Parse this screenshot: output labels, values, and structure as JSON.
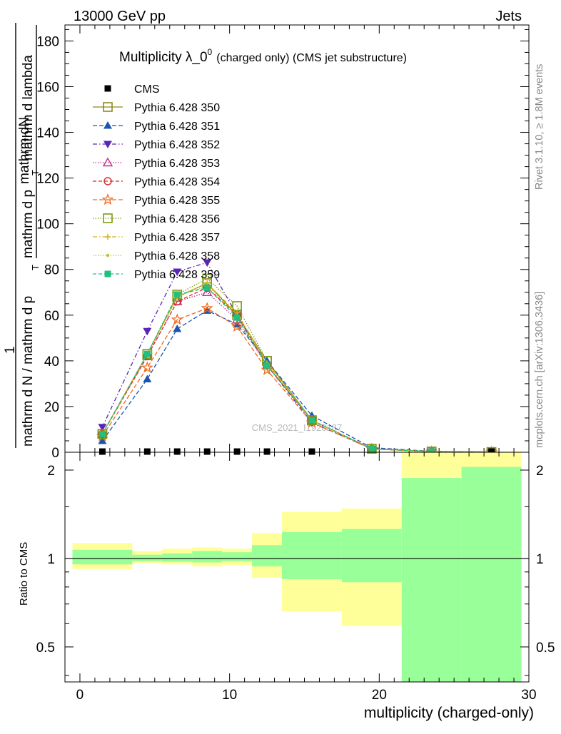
{
  "header": {
    "left": "13000 GeV pp",
    "right": "Jets"
  },
  "side_text": {
    "rivet": "Rivet 3.1.10, ≥ 1.8M events",
    "mcplots": "mcplots.cern.ch [arXiv:1306.3436]"
  },
  "watermark": "CMS_2021_I1920187",
  "chart_data": [
    {
      "type": "line",
      "title_main": "Multiplicity λ_0",
      "title_sup": "0",
      "title_suffix": "(charged only) (CMS jet substructure)",
      "ylabel_numerator": "mathrm dN",
      "ylabel_den_bottom": "mathrm d p",
      "ylabel_den_sub": "T",
      "ylabel_den_top": "mathrm d lambda",
      "ylabel_one": "1",
      "ylabel_lower_main": "mathrm d N / mathrm d p",
      "ylabel_lower_sub": "T",
      "xlim": [
        -1,
        30
      ],
      "ylim": [
        0,
        187
      ],
      "yticks": [
        0,
        20,
        40,
        60,
        80,
        100,
        120,
        140,
        160,
        180
      ],
      "x": [
        1.5,
        4.5,
        6.5,
        8.5,
        10.5,
        12.5,
        15.5,
        19.5,
        23.5,
        27.5
      ],
      "reference": {
        "name": "CMS",
        "color": "#000000",
        "values": [
          0.3,
          0.3,
          0.3,
          0.3,
          0.3,
          0.3,
          0.3,
          0,
          0,
          0.3
        ]
      },
      "series": [
        {
          "name": "Pythia 6.428 350",
          "color": "#8b8b1a",
          "dash": "",
          "marker": "square-open",
          "values": [
            8,
            43,
            68,
            74,
            60,
            40,
            14,
            1.5,
            0.3,
            0.1
          ]
        },
        {
          "name": "Pythia 6.428 351",
          "color": "#1a56b0",
          "dash": "6,3",
          "marker": "triangle-up",
          "values": [
            5,
            32,
            54,
            62,
            56,
            40,
            16,
            2,
            0.4,
            0.1
          ]
        },
        {
          "name": "Pythia 6.428 352",
          "color": "#5b24b8",
          "dash": "6,3,1.5,3",
          "marker": "triangle-down",
          "values": [
            11,
            53,
            79,
            83,
            60,
            38,
            13,
            1.5,
            0.3,
            0.1
          ]
        },
        {
          "name": "Pythia 6.428 353",
          "color": "#c03089",
          "dash": "1.5,2",
          "marker": "triangle-open",
          "values": [
            8,
            42,
            66,
            70,
            58,
            38,
            14,
            1.6,
            0.3,
            0.1
          ]
        },
        {
          "name": "Pythia 6.428 354",
          "color": "#d8262b",
          "dash": "5,3",
          "marker": "circle-open",
          "values": [
            8,
            42,
            66,
            72,
            60,
            38,
            14,
            1.5,
            0.3,
            0.1
          ]
        },
        {
          "name": "Pythia 6.428 355",
          "color": "#f06a1c",
          "dash": "6,3",
          "marker": "star-open",
          "values": [
            7,
            37,
            58,
            63,
            55,
            36,
            13,
            1.4,
            0.3,
            0.1
          ]
        },
        {
          "name": "Pythia 6.428 356",
          "color": "#7c9a12",
          "dash": "1.5,2",
          "marker": "square-open",
          "values": [
            8,
            43,
            69,
            76,
            64,
            40,
            14,
            1.5,
            0.3,
            0.1
          ]
        },
        {
          "name": "Pythia 6.428 357",
          "color": "#d8b020",
          "dash": "6,3,1.5,3",
          "marker": "cross",
          "values": [
            8,
            43,
            68,
            74,
            61,
            39,
            14,
            1.5,
            0.3,
            0.1
          ]
        },
        {
          "name": "Pythia 6.428 358",
          "color": "#b4c818",
          "dash": "1.5,2",
          "marker": "dot",
          "values": [
            8,
            43,
            68,
            73,
            60,
            39,
            14,
            1.5,
            0.3,
            0.1
          ]
        },
        {
          "name": "Pythia 6.428 359",
          "color": "#20c07e",
          "dash": "5,3",
          "marker": "square-filled",
          "values": [
            8,
            43,
            69,
            72,
            59,
            38,
            14,
            1.5,
            0.3,
            0.1
          ]
        }
      ]
    },
    {
      "type": "area",
      "ylabel": "Ratio to CMS",
      "xlabel": "multiplicity (charged-only)",
      "xlim": [
        -1,
        30
      ],
      "xticks": [
        0,
        10,
        20,
        30
      ],
      "ylim_log": [
        0.38,
        2.3
      ],
      "yticks": [
        0.5,
        1,
        2
      ],
      "reference_line": 1,
      "bins": [
        {
          "lo": -0.5,
          "hi": 3.5,
          "y1lo": 0.92,
          "y1hi": 1.13,
          "y2lo": 0.955,
          "y2hi": 1.07
        },
        {
          "lo": 3.5,
          "hi": 5.5,
          "y1lo": 0.965,
          "y1hi": 1.06,
          "y2lo": 0.98,
          "y2hi": 1.03
        },
        {
          "lo": 5.5,
          "hi": 7.5,
          "y1lo": 0.955,
          "y1hi": 1.08,
          "y2lo": 0.975,
          "y2hi": 1.04
        },
        {
          "lo": 7.5,
          "hi": 9.5,
          "y1lo": 0.94,
          "y1hi": 1.09,
          "y2lo": 0.97,
          "y2hi": 1.06
        },
        {
          "lo": 9.5,
          "hi": 11.5,
          "y1lo": 0.95,
          "y1hi": 1.08,
          "y2lo": 0.98,
          "y2hi": 1.05
        },
        {
          "lo": 11.5,
          "hi": 13.5,
          "y1lo": 0.86,
          "y1hi": 1.22,
          "y2lo": 0.94,
          "y2hi": 1.11
        },
        {
          "lo": 13.5,
          "hi": 17.5,
          "y1lo": 0.66,
          "y1hi": 1.44,
          "y2lo": 0.85,
          "y2hi": 1.23
        },
        {
          "lo": 17.5,
          "hi": 21.5,
          "y1lo": 0.59,
          "y1hi": 1.48,
          "y2lo": 0.83,
          "y2hi": 1.26
        },
        {
          "lo": 21.5,
          "hi": 25.5,
          "y1lo": 0.3,
          "y1hi": 3.0,
          "y2lo": 0.3,
          "y2hi": 1.88
        },
        {
          "lo": 25.5,
          "hi": 29.5,
          "y1lo": 0.3,
          "y1hi": 3.0,
          "y2lo": 0.3,
          "y2hi": 2.05
        }
      ],
      "band_colors": {
        "outer": "#ffff99",
        "inner": "#99ff99"
      }
    }
  ]
}
